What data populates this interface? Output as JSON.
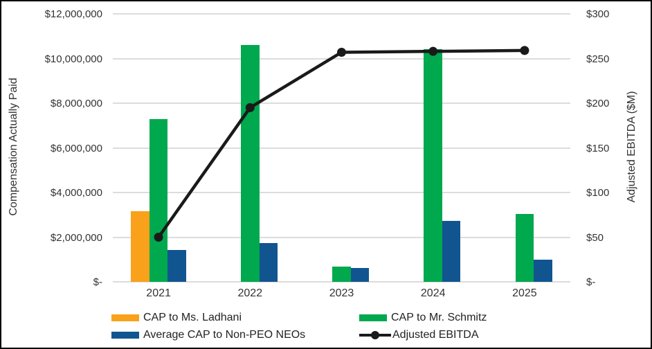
{
  "chart": {
    "left_axis": {
      "title": "Compensation Actually Paid",
      "tick_labels": [
        "$12,000,000",
        "$10,000,000",
        "$8,000,000",
        "$6,000,000",
        "$4,000,000",
        "$2,000,000",
        "$-"
      ]
    },
    "right_axis": {
      "title": "Adjusted EBITDA ($M)",
      "tick_labels": [
        "$300",
        "$250",
        "$200",
        "$150",
        "$100",
        "$50",
        "$-"
      ]
    },
    "colors": {
      "ladhani_orange": "#F9A11B",
      "schmitz_green": "#00A84E",
      "non_peo_blue": "#115590",
      "ebitda_line": "#1A1A1A",
      "gridline": "#DCDCDC",
      "text": "#333333"
    }
  },
  "chart_data": {
    "type": "bar",
    "categories": [
      "2021",
      "2022",
      "2023",
      "2024",
      "2025"
    ],
    "series": [
      {
        "name": "CAP to Ms. Ladhani",
        "color": "#F9A11B",
        "values": [
          3160000,
          0,
          0,
          0,
          0
        ]
      },
      {
        "name": "CAP to Mr. Schmitz",
        "color": "#00A84E",
        "values": [
          7300000,
          10610000,
          680000,
          10410000,
          3050000
        ]
      },
      {
        "name": "Average CAP to Non-PEO NEOs",
        "color": "#115590",
        "values": [
          1430000,
          1740000,
          630000,
          2740000,
          980000
        ]
      }
    ],
    "line_series": {
      "name": "Adjusted EBITDA",
      "color": "#1A1A1A",
      "axis": "right",
      "values": [
        50,
        195,
        257,
        258,
        259
      ]
    },
    "title": "",
    "xlabel": "",
    "ylabel_left": "Compensation Actually Paid",
    "ylabel_right": "Adjusted EBITDA ($M)",
    "ylim_left": [
      0,
      12000000
    ],
    "ylim_right": [
      0,
      300
    ],
    "grid": true,
    "legend_position": "bottom"
  }
}
